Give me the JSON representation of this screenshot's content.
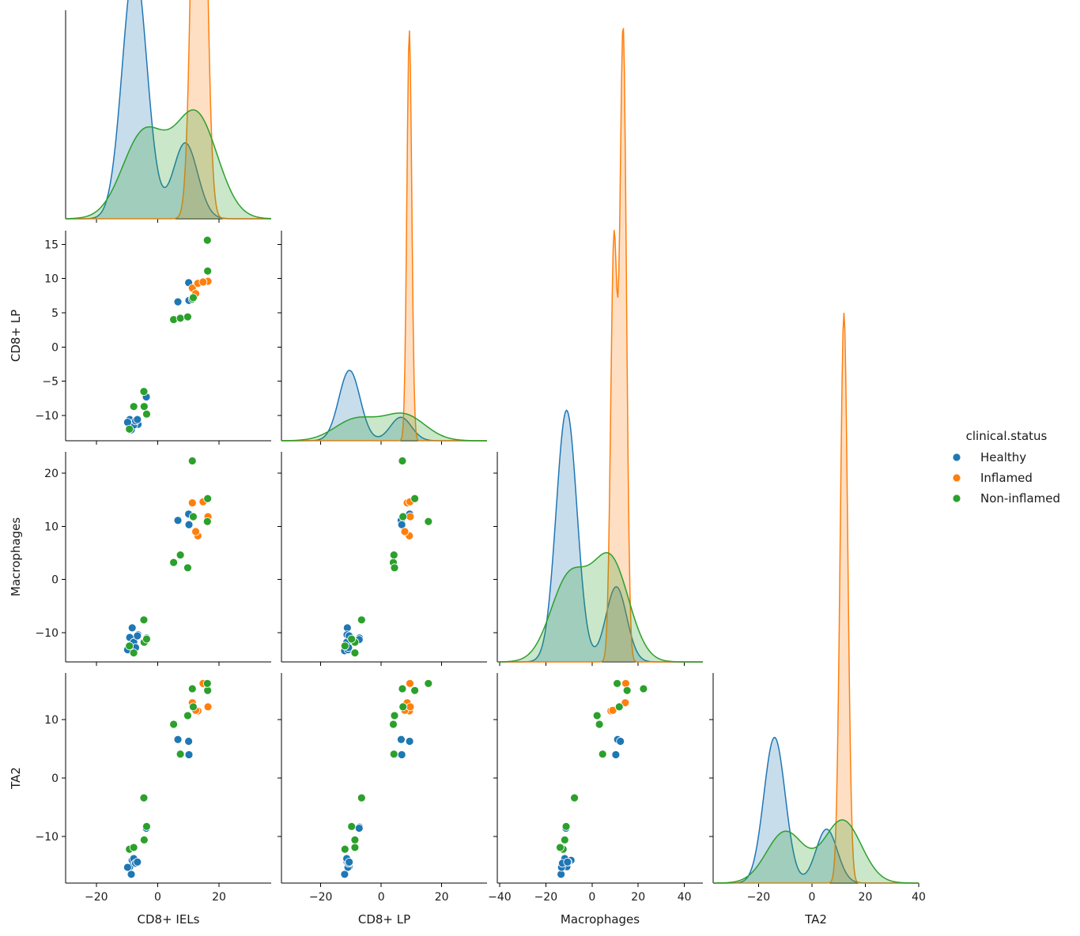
{
  "chart_data": {
    "type": "scatter",
    "variables": [
      "CD8+ IELs",
      "CD8+ LP",
      "Macrophages",
      "TA2"
    ],
    "axis_labels": {
      "x": [
        "CD8+ IELs",
        "CD8+ LP",
        "Macrophages",
        "TA2"
      ],
      "y": [
        "",
        "CD8+ LP",
        "Macrophages",
        "TA2"
      ]
    },
    "x_ranges": [
      [
        -30,
        37
      ],
      [
        -33,
        35
      ],
      [
        -41,
        48
      ],
      [
        -37,
        40
      ]
    ],
    "y_ranges": [
      null,
      [
        -13.7,
        17
      ],
      [
        -15.5,
        24
      ],
      [
        -18,
        18
      ]
    ],
    "x_ticks": [
      [
        -20,
        0,
        20
      ],
      [
        -20,
        0,
        20
      ],
      [
        -40,
        -20,
        0,
        20,
        40
      ],
      [
        -20,
        0,
        20,
        40
      ]
    ],
    "y_ticks": [
      null,
      [
        -10,
        -5,
        0,
        5,
        10,
        15
      ],
      [
        -10,
        0,
        10,
        20
      ],
      [
        -10,
        0,
        10
      ]
    ],
    "hue": "clinical.status",
    "legend": {
      "title": "clinical.status",
      "position": "right",
      "entries": [
        {
          "name": "Healthy",
          "color": "#1f77b4"
        },
        {
          "name": "Inflamed",
          "color": "#ff7f0e"
        },
        {
          "name": "Non-inflamed",
          "color": "#2ca02c"
        }
      ]
    },
    "series": [
      {
        "name": "Healthy",
        "color": "#1f77b4",
        "points": [
          [
            -8.3,
            -11.2,
            -9.1,
            -14.1
          ],
          [
            -9.1,
            -10.6,
            -10.9,
            -15.2
          ],
          [
            -6.4,
            -11.3,
            -10.4,
            -14.4
          ],
          [
            -8.6,
            -12.1,
            -13.4,
            -16.5
          ],
          [
            -7.8,
            -11.4,
            -11.8,
            -13.8
          ],
          [
            -9.8,
            -11.0,
            -13.2,
            -15.3
          ],
          [
            -7.2,
            -10.8,
            -12.8,
            -14.6
          ],
          [
            -3.6,
            -7.2,
            -11.0,
            -8.4
          ],
          [
            -6.6,
            -10.6,
            -10.6,
            -14.4
          ],
          [
            -3.7,
            -7.3,
            -11.3,
            -8.6
          ],
          [
            6.6,
            6.6,
            11.1,
            6.6
          ],
          [
            10.1,
            9.4,
            12.3,
            6.3
          ],
          [
            10.2,
            6.8,
            10.3,
            4.0
          ]
        ]
      },
      {
        "name": "Inflamed",
        "color": "#ff7f0e",
        "points": [
          [
            11.3,
            8.6,
            14.4,
            12.9
          ],
          [
            13.1,
            9.3,
            8.2,
            11.5
          ],
          [
            12.4,
            7.8,
            9.0,
            11.6
          ],
          [
            16.4,
            9.6,
            11.8,
            12.2
          ],
          [
            14.8,
            9.5,
            14.6,
            16.2
          ]
        ]
      },
      {
        "name": "Non-inflamed",
        "color": "#2ca02c",
        "points": [
          [
            -9.2,
            -12.0,
            -12.5,
            -12.2
          ],
          [
            -7.8,
            -8.7,
            -13.8,
            -11.9
          ],
          [
            -4.5,
            -6.5,
            -7.6,
            -3.4
          ],
          [
            -4.4,
            -8.7,
            -11.8,
            -10.6
          ],
          [
            -3.6,
            -9.8,
            -11.2,
            -8.3
          ],
          [
            5.2,
            4.0,
            3.2,
            9.2
          ],
          [
            7.4,
            4.2,
            4.6,
            4.1
          ],
          [
            9.8,
            4.4,
            2.2,
            10.7
          ],
          [
            11.3,
            7.0,
            22.3,
            15.3
          ],
          [
            16.3,
            11.1,
            15.2,
            15.0
          ],
          [
            16.2,
            15.6,
            10.9,
            16.2
          ],
          [
            11.6,
            7.2,
            11.8,
            12.2
          ]
        ]
      }
    ],
    "kde": {
      "CD8+ IELs": {
        "y_max": 0.063,
        "Healthy": {
          "peaks": [
            [
              -7.5,
              4.0,
              0.77
            ],
            [
              9.0,
              4.0,
              0.23
            ]
          ]
        },
        "Inflamed": {
          "peaks": [
            [
              13.5,
              2.0,
              1.0
            ]
          ]
        },
        "Non-inflamed": {
          "peaks": [
            [
              -4.5,
              7.0,
              0.45
            ],
            [
              12.5,
              7.0,
              0.55
            ]
          ]
        }
      },
      "CD8+ LP": {
        "y_max": 0.255,
        "Healthy": {
          "peaks": [
            [
              -10.5,
              3.5,
              0.75
            ],
            [
              6.5,
              3.5,
              0.25
            ]
          ]
        },
        "Inflamed": {
          "peaks": [
            [
              9.3,
              0.8,
              1.0
            ]
          ]
        },
        "Non-inflamed": {
          "peaks": [
            [
              -8.5,
              7.0,
              0.45
            ],
            [
              7.5,
              7.0,
              0.55
            ]
          ]
        }
      },
      "Macrophages": {
        "y_max": 0.057,
        "Healthy": {
          "peaks": [
            [
              -11.0,
              4.5,
              0.77
            ],
            [
              10.5,
              4.5,
              0.23
            ]
          ]
        },
        "Inflamed": {
          "peaks": [
            [
              9.5,
              1.4,
              0.4
            ],
            [
              13.5,
              1.4,
              0.6
            ]
          ]
        },
        "Non-inflamed": {
          "peaks": [
            [
              -10.0,
              8.0,
              0.45
            ],
            [
              8.0,
              8.0,
              0.55
            ]
          ]
        }
      },
      "TA2": {
        "y_max": 0.105,
        "Healthy": {
          "peaks": [
            [
              -14.0,
              4.0,
              0.73
            ],
            [
              5.5,
              4.0,
              0.27
            ]
          ]
        },
        "Inflamed": {
          "peaks": [
            [
              12.0,
              1.4,
              1.0
            ]
          ]
        },
        "Non-inflamed": {
          "peaks": [
            [
              -10.0,
              7.0,
              0.45
            ],
            [
              11.5,
              7.0,
              0.55
            ]
          ]
        }
      }
    }
  }
}
